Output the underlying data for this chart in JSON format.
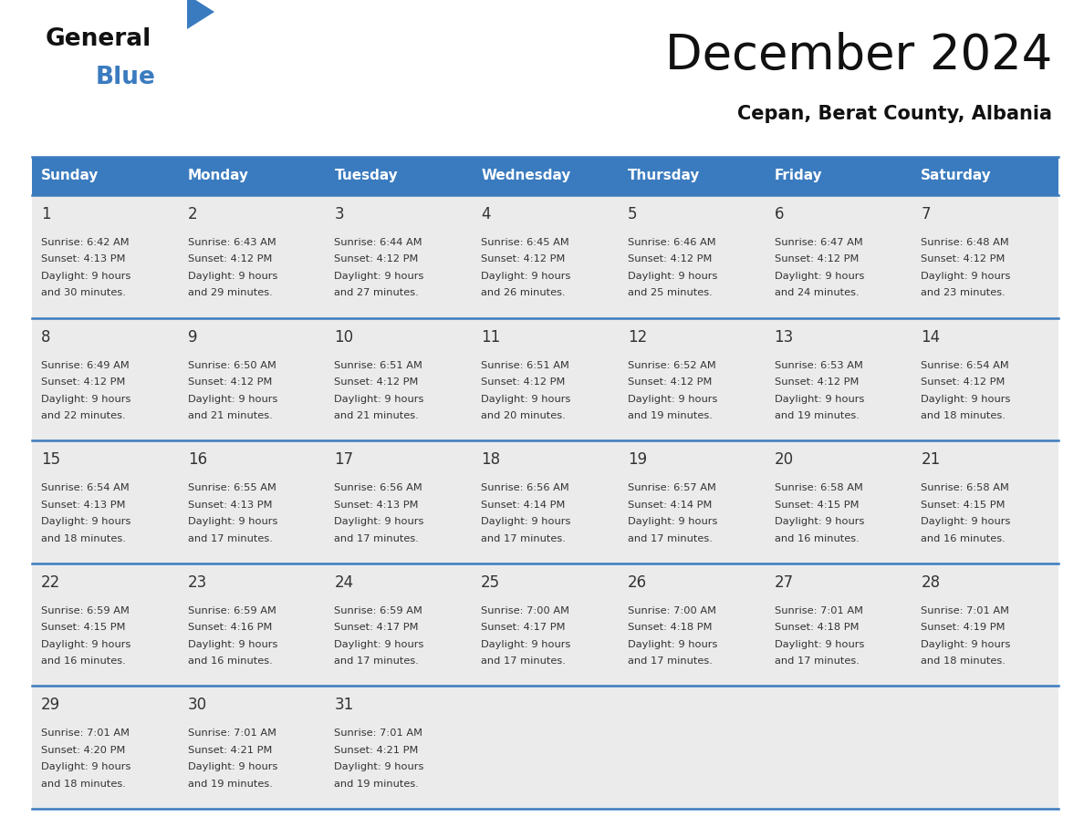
{
  "title": "December 2024",
  "subtitle": "Cepan, Berat County, Albania",
  "header_color": "#3a7bbf",
  "header_text_color": "#ffffff",
  "cell_bg_color": "#ebebeb",
  "divider_color": "#3a7bbf",
  "text_color": "#333333",
  "days_of_week": [
    "Sunday",
    "Monday",
    "Tuesday",
    "Wednesday",
    "Thursday",
    "Friday",
    "Saturday"
  ],
  "weeks": [
    [
      {
        "day": 1,
        "sunrise": "6:42 AM",
        "sunset": "4:13 PM",
        "daylight": "9 hours and 30 minutes."
      },
      {
        "day": 2,
        "sunrise": "6:43 AM",
        "sunset": "4:12 PM",
        "daylight": "9 hours and 29 minutes."
      },
      {
        "day": 3,
        "sunrise": "6:44 AM",
        "sunset": "4:12 PM",
        "daylight": "9 hours and 27 minutes."
      },
      {
        "day": 4,
        "sunrise": "6:45 AM",
        "sunset": "4:12 PM",
        "daylight": "9 hours and 26 minutes."
      },
      {
        "day": 5,
        "sunrise": "6:46 AM",
        "sunset": "4:12 PM",
        "daylight": "9 hours and 25 minutes."
      },
      {
        "day": 6,
        "sunrise": "6:47 AM",
        "sunset": "4:12 PM",
        "daylight": "9 hours and 24 minutes."
      },
      {
        "day": 7,
        "sunrise": "6:48 AM",
        "sunset": "4:12 PM",
        "daylight": "9 hours and 23 minutes."
      }
    ],
    [
      {
        "day": 8,
        "sunrise": "6:49 AM",
        "sunset": "4:12 PM",
        "daylight": "9 hours and 22 minutes."
      },
      {
        "day": 9,
        "sunrise": "6:50 AM",
        "sunset": "4:12 PM",
        "daylight": "9 hours and 21 minutes."
      },
      {
        "day": 10,
        "sunrise": "6:51 AM",
        "sunset": "4:12 PM",
        "daylight": "9 hours and 21 minutes."
      },
      {
        "day": 11,
        "sunrise": "6:51 AM",
        "sunset": "4:12 PM",
        "daylight": "9 hours and 20 minutes."
      },
      {
        "day": 12,
        "sunrise": "6:52 AM",
        "sunset": "4:12 PM",
        "daylight": "9 hours and 19 minutes."
      },
      {
        "day": 13,
        "sunrise": "6:53 AM",
        "sunset": "4:12 PM",
        "daylight": "9 hours and 19 minutes."
      },
      {
        "day": 14,
        "sunrise": "6:54 AM",
        "sunset": "4:12 PM",
        "daylight": "9 hours and 18 minutes."
      }
    ],
    [
      {
        "day": 15,
        "sunrise": "6:54 AM",
        "sunset": "4:13 PM",
        "daylight": "9 hours and 18 minutes."
      },
      {
        "day": 16,
        "sunrise": "6:55 AM",
        "sunset": "4:13 PM",
        "daylight": "9 hours and 17 minutes."
      },
      {
        "day": 17,
        "sunrise": "6:56 AM",
        "sunset": "4:13 PM",
        "daylight": "9 hours and 17 minutes."
      },
      {
        "day": 18,
        "sunrise": "6:56 AM",
        "sunset": "4:14 PM",
        "daylight": "9 hours and 17 minutes."
      },
      {
        "day": 19,
        "sunrise": "6:57 AM",
        "sunset": "4:14 PM",
        "daylight": "9 hours and 17 minutes."
      },
      {
        "day": 20,
        "sunrise": "6:58 AM",
        "sunset": "4:15 PM",
        "daylight": "9 hours and 16 minutes."
      },
      {
        "day": 21,
        "sunrise": "6:58 AM",
        "sunset": "4:15 PM",
        "daylight": "9 hours and 16 minutes."
      }
    ],
    [
      {
        "day": 22,
        "sunrise": "6:59 AM",
        "sunset": "4:15 PM",
        "daylight": "9 hours and 16 minutes."
      },
      {
        "day": 23,
        "sunrise": "6:59 AM",
        "sunset": "4:16 PM",
        "daylight": "9 hours and 16 minutes."
      },
      {
        "day": 24,
        "sunrise": "6:59 AM",
        "sunset": "4:17 PM",
        "daylight": "9 hours and 17 minutes."
      },
      {
        "day": 25,
        "sunrise": "7:00 AM",
        "sunset": "4:17 PM",
        "daylight": "9 hours and 17 minutes."
      },
      {
        "day": 26,
        "sunrise": "7:00 AM",
        "sunset": "4:18 PM",
        "daylight": "9 hours and 17 minutes."
      },
      {
        "day": 27,
        "sunrise": "7:01 AM",
        "sunset": "4:18 PM",
        "daylight": "9 hours and 17 minutes."
      },
      {
        "day": 28,
        "sunrise": "7:01 AM",
        "sunset": "4:19 PM",
        "daylight": "9 hours and 18 minutes."
      }
    ],
    [
      {
        "day": 29,
        "sunrise": "7:01 AM",
        "sunset": "4:20 PM",
        "daylight": "9 hours and 18 minutes."
      },
      {
        "day": 30,
        "sunrise": "7:01 AM",
        "sunset": "4:21 PM",
        "daylight": "9 hours and 19 minutes."
      },
      {
        "day": 31,
        "sunrise": "7:01 AM",
        "sunset": "4:21 PM",
        "daylight": "9 hours and 19 minutes."
      },
      null,
      null,
      null,
      null
    ]
  ],
  "logo_general_color": "#111111",
  "logo_blue_color": "#3a7bbf"
}
